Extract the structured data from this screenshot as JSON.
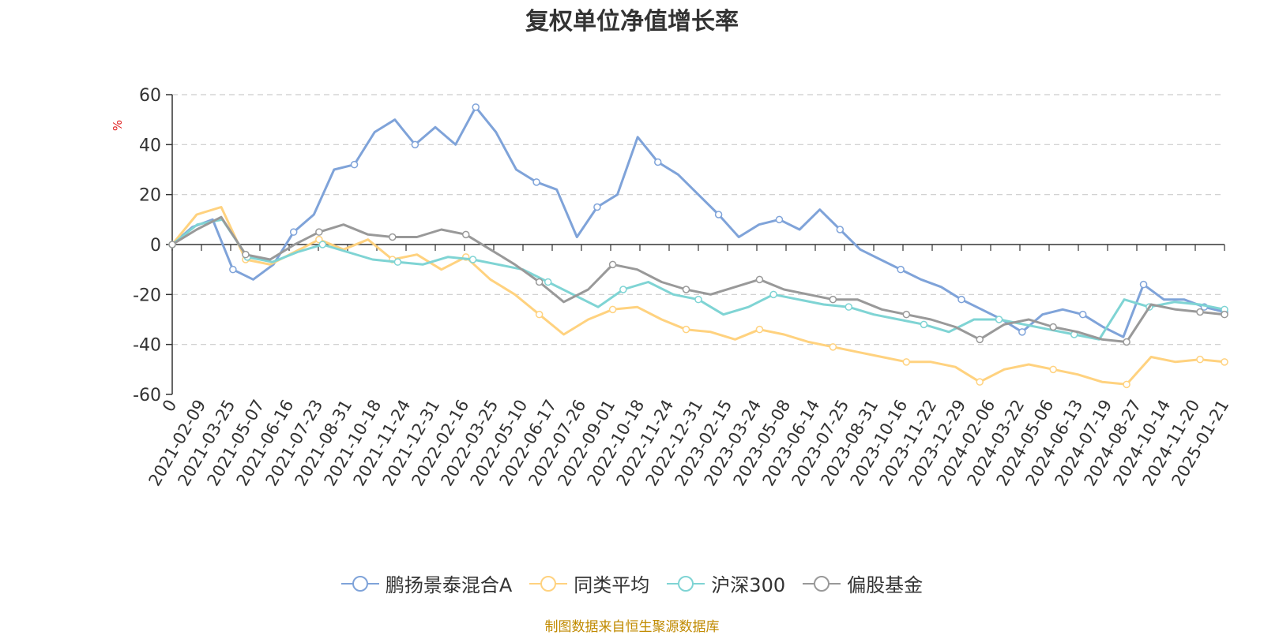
{
  "chart_data": {
    "type": "line",
    "title": "复权单位净值增长率",
    "ylabel": "%",
    "xlabel": "",
    "ylim": [
      -60,
      60
    ],
    "yticks": [
      60,
      40,
      20,
      0,
      -20,
      -40,
      -60
    ],
    "x_tick_labels": [
      "0",
      "2021-02-09",
      "2021-03-25",
      "2021-05-07",
      "2021-06-16",
      "2021-07-23",
      "2021-08-31",
      "2021-10-18",
      "2021-11-24",
      "2021-12-31",
      "2022-02-16",
      "2022-03-25",
      "2022-05-10",
      "2022-06-17",
      "2022-07-26",
      "2022-09-01",
      "2022-10-18",
      "2022-11-24",
      "2022-12-31",
      "2023-02-15",
      "2023-03-24",
      "2023-05-08",
      "2023-06-14",
      "2023-07-25",
      "2023-08-31",
      "2023-10-16",
      "2023-11-22",
      "2023-12-29",
      "2024-02-06",
      "2024-03-22",
      "2024-05-06",
      "2024-06-13",
      "2024-07-19",
      "2024-08-27",
      "2024-10-14",
      "2024-11-20",
      "2025-01-21"
    ],
    "series": [
      {
        "name": "鹏扬景泰混合A",
        "color": "#7fa3d9",
        "values": [
          0,
          7,
          10,
          -10,
          -14,
          -8,
          5,
          12,
          30,
          32,
          45,
          50,
          40,
          47,
          40,
          55,
          45,
          30,
          25,
          22,
          3,
          15,
          20,
          43,
          33,
          28,
          20,
          12,
          3,
          8,
          10,
          6,
          14,
          6,
          -2,
          -6,
          -10,
          -14,
          -17,
          -22,
          -26,
          -30,
          -35,
          -28,
          -26,
          -28,
          -33,
          -37,
          -16,
          -22,
          -22,
          -25,
          -27
        ]
      },
      {
        "name": "同类平均",
        "color": "#ffd27f",
        "values": [
          0,
          12,
          15,
          -6,
          -8,
          -3,
          2,
          -2,
          2,
          -6,
          -4,
          -10,
          -5,
          -14,
          -20,
          -28,
          -36,
          -30,
          -26,
          -25,
          -30,
          -34,
          -35,
          -38,
          -34,
          -36,
          -39,
          -41,
          -43,
          -45,
          -47,
          -47,
          -49,
          -55,
          -50,
          -48,
          -50,
          -52,
          -55,
          -56,
          -45,
          -47,
          -46,
          -47
        ]
      },
      {
        "name": "沪深300",
        "color": "#7fd4d4",
        "values": [
          0,
          8,
          10,
          -5,
          -7,
          -3,
          0,
          -3,
          -6,
          -7,
          -8,
          -5,
          -6,
          -8,
          -10,
          -15,
          -20,
          -25,
          -18,
          -15,
          -20,
          -22,
          -28,
          -25,
          -20,
          -22,
          -24,
          -25,
          -28,
          -30,
          -32,
          -35,
          -30,
          -30,
          -32,
          -34,
          -36,
          -38,
          -22,
          -25,
          -23,
          -24,
          -26
        ]
      },
      {
        "name": "偏股基金",
        "color": "#999999",
        "values": [
          0,
          6,
          11,
          -4,
          -6,
          0,
          5,
          8,
          4,
          3,
          3,
          6,
          4,
          -2,
          -8,
          -15,
          -23,
          -18,
          -8,
          -10,
          -15,
          -18,
          -20,
          -17,
          -14,
          -18,
          -20,
          -22,
          -22,
          -26,
          -28,
          -30,
          -33,
          -38,
          -32,
          -30,
          -33,
          -35,
          -38,
          -39,
          -24,
          -26,
          -27,
          -28
        ]
      }
    ]
  },
  "legend": {
    "items": [
      "鹏扬景泰混合A",
      "同类平均",
      "沪深300",
      "偏股基金"
    ]
  },
  "footer": {
    "source": "制图数据来自恒生聚源数据库"
  }
}
